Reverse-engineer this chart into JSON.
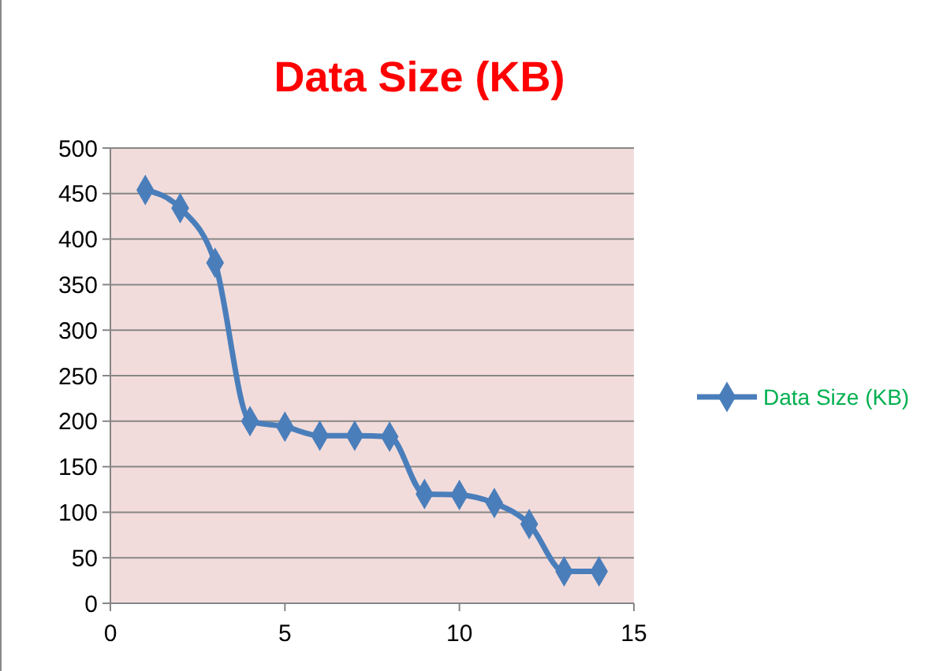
{
  "chart_data": {
    "type": "line",
    "title": "Data Size (KB)",
    "x": [
      1,
      2,
      3,
      4,
      5,
      6,
      7,
      8,
      9,
      10,
      11,
      12,
      13,
      14
    ],
    "series": [
      {
        "name": "Data Size (KB)",
        "color": "#4a7ebb",
        "values": [
          454,
          434,
          374,
          200,
          194,
          184,
          184,
          183,
          120,
          119,
          110,
          87,
          35,
          35
        ]
      }
    ],
    "xlim": [
      0,
      15
    ],
    "xticks": [
      0,
      5,
      10,
      15
    ],
    "ylim": [
      0,
      500
    ],
    "yticks": [
      0,
      50,
      100,
      150,
      200,
      250,
      300,
      350,
      400,
      450,
      500
    ],
    "grid": "y",
    "legend": "right",
    "marker": "diamond",
    "line_style": "solid"
  }
}
